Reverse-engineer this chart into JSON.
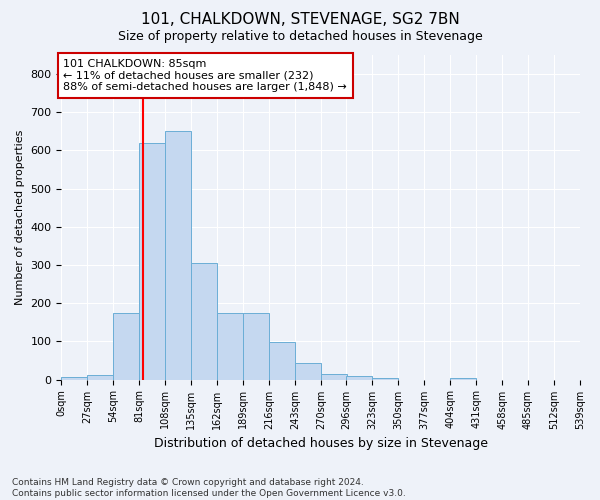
{
  "title": "101, CHALKDOWN, STEVENAGE, SG2 7BN",
  "subtitle": "Size of property relative to detached houses in Stevenage",
  "xlabel": "Distribution of detached houses by size in Stevenage",
  "ylabel": "Number of detached properties",
  "bar_color": "#c5d8f0",
  "bar_edge_color": "#6baed6",
  "background_color": "#eef2f9",
  "grid_color": "#ffffff",
  "red_line_x": 85,
  "annotation_text": "101 CHALKDOWN: 85sqm\n← 11% of detached houses are smaller (232)\n88% of semi-detached houses are larger (1,848) →",
  "bin_edges": [
    0,
    27,
    54,
    81,
    108,
    135,
    162,
    189,
    216,
    243,
    270,
    296,
    323,
    350,
    377,
    404,
    431,
    458,
    485,
    512,
    539
  ],
  "bin_counts": [
    8,
    13,
    175,
    620,
    650,
    305,
    175,
    175,
    98,
    43,
    15,
    10,
    5,
    0,
    0,
    5,
    0,
    0,
    0,
    0
  ],
  "tick_labels": [
    "0sqm",
    "27sqm",
    "54sqm",
    "81sqm",
    "108sqm",
    "135sqm",
    "162sqm",
    "189sqm",
    "216sqm",
    "243sqm",
    "270sqm",
    "296sqm",
    "323sqm",
    "350sqm",
    "377sqm",
    "404sqm",
    "431sqm",
    "458sqm",
    "485sqm",
    "512sqm",
    "539sqm"
  ],
  "ylim": [
    0,
    850
  ],
  "yticks": [
    0,
    100,
    200,
    300,
    400,
    500,
    600,
    700,
    800
  ],
  "footer_text": "Contains HM Land Registry data © Crown copyright and database right 2024.\nContains public sector information licensed under the Open Government Licence v3.0.",
  "annotation_box_facecolor": "#ffffff",
  "annotation_box_edgecolor": "#cc0000",
  "title_fontsize": 11,
  "subtitle_fontsize": 9,
  "ylabel_fontsize": 8,
  "xlabel_fontsize": 9
}
